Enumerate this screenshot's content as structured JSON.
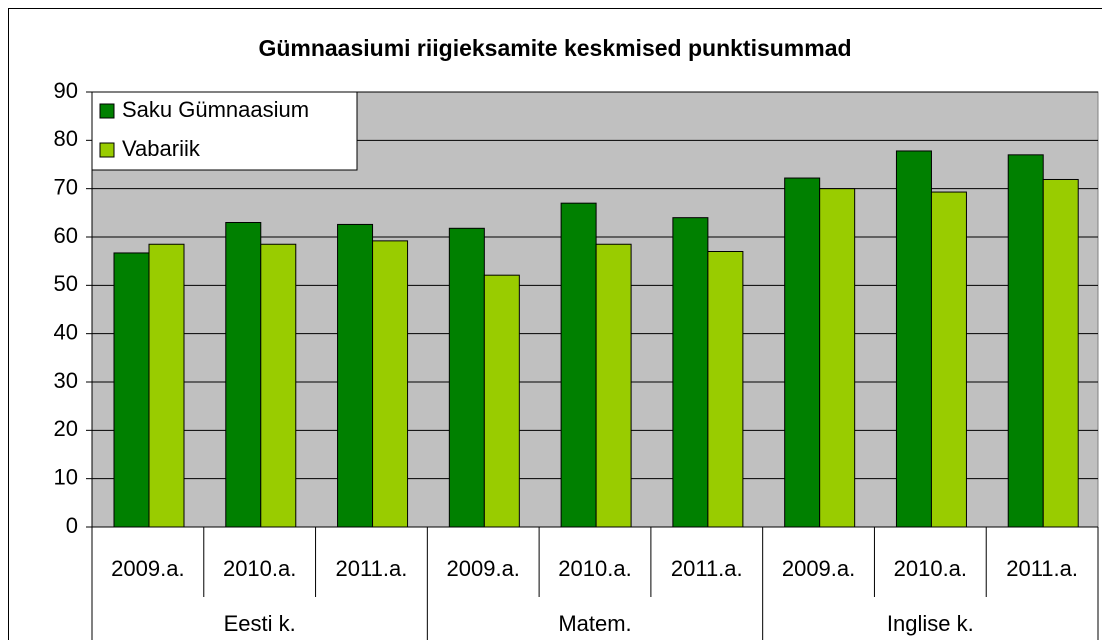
{
  "chart_data": {
    "type": "bar",
    "title": "Gümnaasiumi riigieksamite keskmised punktisummad",
    "categories": [
      "2009.a.",
      "2010.a.",
      "2011.a.",
      "2009.a.",
      "2010.a.",
      "2011.a.",
      "2009.a.",
      "2010.a.",
      "2011.a."
    ],
    "category_groups": [
      "Eesti k.",
      "Matem.",
      "Inglise k."
    ],
    "series": [
      {
        "name": "Saku Gümnaasium",
        "color": "#008000",
        "values": [
          56.7,
          63,
          62.6,
          61.8,
          67,
          64,
          72.2,
          77.8,
          77
        ]
      },
      {
        "name": "Vabariik",
        "color": "#99cc00",
        "values": [
          58.5,
          58.5,
          59.2,
          52.1,
          58.5,
          57,
          70,
          69.3,
          71.9
        ]
      }
    ],
    "ylim": [
      0,
      90
    ],
    "yticks": [
      0,
      10,
      20,
      30,
      40,
      50,
      60,
      70,
      80,
      90
    ],
    "grid": true,
    "legend": "top-left"
  }
}
